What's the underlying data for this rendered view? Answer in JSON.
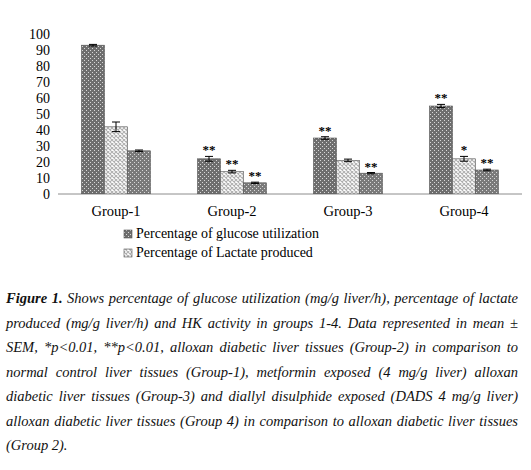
{
  "chart_data": {
    "type": "bar",
    "categories": [
      "Group-1",
      "Group-2",
      "Group-3",
      "Group-4"
    ],
    "series": [
      {
        "name": "Percentage of glucose utilization",
        "color": "#6e6e6e",
        "values": [
          93,
          22,
          35,
          55
        ],
        "errors": [
          0.5,
          1.5,
          0.8,
          1
        ],
        "significance": [
          null,
          "**",
          "**",
          "**"
        ]
      },
      {
        "name": "Percentage of Lactate produced",
        "color": "#b0b0b0",
        "values": [
          42,
          14,
          21,
          22
        ],
        "errors": [
          3,
          0.8,
          0.8,
          1.5
        ],
        "significance": [
          null,
          "**",
          null,
          "*"
        ]
      },
      {
        "name": null,
        "color": "#7a7a7a",
        "values": [
          27,
          7,
          13,
          15
        ],
        "errors": [
          0.5,
          0.4,
          0.4,
          0.5
        ],
        "significance": [
          null,
          "**",
          "**",
          "**"
        ]
      }
    ],
    "ylim": [
      0,
      100
    ],
    "yticks": [
      0,
      10,
      20,
      30,
      40,
      50,
      60,
      70,
      80,
      90,
      100
    ],
    "grid": false,
    "legend": "bottom",
    "caption_label": "Figure 1.",
    "caption": "Shows percentage of glucose utilization (mg/g liver/h), percentage of lactate produced (mg/g liver/h) and HK activity in groups 1-4. Data represented in mean ± SEM, *p<0.01, **p<0.01, alloxan diabetic liver tissues (Group-2) in comparison to normal control liver tissues (Group-1), metformin exposed (4 mg/g liver) alloxan diabetic liver tissues (Group-3) and diallyl disulphide exposed (DADS 4 mg/g liver) alloxan diabetic liver tissues (Group 4) in comparison to alloxan diabetic liver tissues (Group 2)."
  }
}
